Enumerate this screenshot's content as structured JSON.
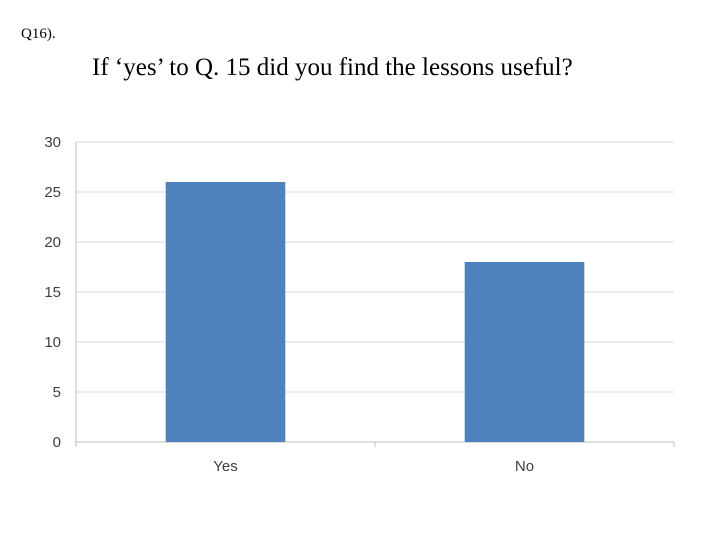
{
  "question_number": "Q16).",
  "question_text": "If ‘yes’ to Q. 15 did you find the lessons useful?",
  "chart_data": {
    "type": "bar",
    "categories": [
      "Yes",
      "No"
    ],
    "values": [
      26,
      18
    ],
    "ylim": [
      0,
      30
    ],
    "yticks": [
      0,
      5,
      10,
      15,
      20,
      25,
      30
    ],
    "grid": true,
    "legend": "none",
    "bar_color": "#4f81bd",
    "grid_color": "#d9d9d9",
    "axis_color": "#bfbfbf"
  }
}
